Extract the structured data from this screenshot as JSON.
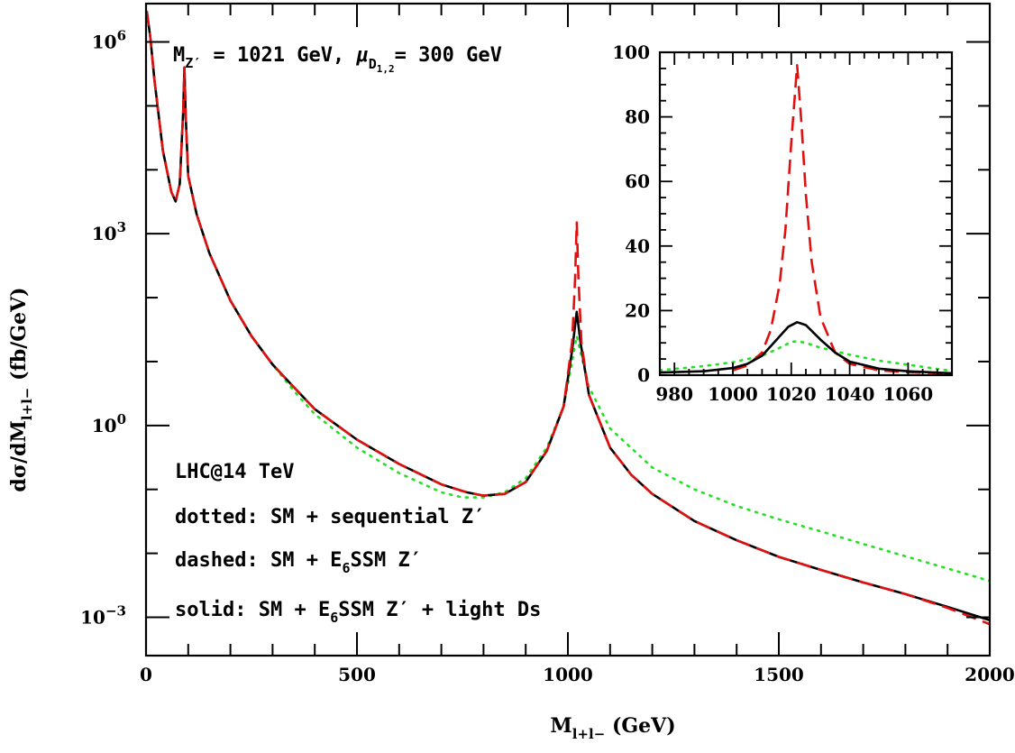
{
  "chart_data": [
    {
      "id": "main",
      "type": "line",
      "title": "",
      "xlabel": "M",
      "xlabel_sub": "l+l−",
      "xlabel_unit": "(GeV)",
      "ylabel_parts": [
        "dσ/dM",
        "l+l−",
        "(fb/GeV)"
      ],
      "xlim": [
        0,
        2000
      ],
      "ylim_log10": [
        -3.6,
        6.6
      ],
      "yscale": "log",
      "x_ticks": [
        0,
        500,
        1000,
        1500,
        2000
      ],
      "y_tick_labels": [
        {
          "base": "10",
          "exp": "6",
          "value": 1000000
        },
        {
          "base": "10",
          "exp": "3",
          "value": 1000
        },
        {
          "base": "10",
          "exp": "0",
          "value": 1
        },
        {
          "base": "10",
          "exp": "−3",
          "value": 0.001
        }
      ],
      "series": [
        {
          "name": "solid: SM + E6SSM Z′ + light Ds",
          "style": "solid",
          "color": "#000000",
          "points": [
            [
              2,
              3000000
            ],
            [
              10,
              1200000
            ],
            [
              20,
              250000
            ],
            [
              40,
              20000
            ],
            [
              60,
              4500
            ],
            [
              70,
              3200
            ],
            [
              80,
              6000
            ],
            [
              88,
              80000
            ],
            [
              91,
              400000
            ],
            [
              94,
              70000
            ],
            [
              100,
              8000
            ],
            [
              120,
              2000
            ],
            [
              150,
              500
            ],
            [
              200,
              90
            ],
            [
              250,
              25
            ],
            [
              300,
              9
            ],
            [
              350,
              4
            ],
            [
              400,
              1.8
            ],
            [
              500,
              0.6
            ],
            [
              600,
              0.25
            ],
            [
              700,
              0.12
            ],
            [
              760,
              0.09
            ],
            [
              800,
              0.08
            ],
            [
              850,
              0.085
            ],
            [
              900,
              0.13
            ],
            [
              950,
              0.4
            ],
            [
              990,
              2
            ],
            [
              1010,
              15
            ],
            [
              1021,
              60
            ],
            [
              1030,
              20
            ],
            [
              1050,
              3
            ],
            [
              1100,
              0.45
            ],
            [
              1150,
              0.17
            ],
            [
              1200,
              0.085
            ],
            [
              1300,
              0.032
            ],
            [
              1400,
              0.016
            ],
            [
              1500,
              0.0088
            ],
            [
              1600,
              0.0055
            ],
            [
              1700,
              0.0035
            ],
            [
              1800,
              0.0023
            ],
            [
              1900,
              0.00145
            ],
            [
              2000,
              0.0009
            ]
          ]
        },
        {
          "name": "dashed: SM + E6SSM Z′",
          "style": "dashed",
          "color": "#e01010",
          "points": [
            [
              2,
              3000000
            ],
            [
              10,
              1200000
            ],
            [
              20,
              250000
            ],
            [
              40,
              20000
            ],
            [
              60,
              4500
            ],
            [
              70,
              3200
            ],
            [
              80,
              6000
            ],
            [
              88,
              80000
            ],
            [
              91,
              400000
            ],
            [
              94,
              70000
            ],
            [
              100,
              8000
            ],
            [
              120,
              2000
            ],
            [
              150,
              500
            ],
            [
              200,
              90
            ],
            [
              250,
              25
            ],
            [
              300,
              9
            ],
            [
              350,
              4
            ],
            [
              400,
              1.8
            ],
            [
              500,
              0.6
            ],
            [
              600,
              0.25
            ],
            [
              700,
              0.12
            ],
            [
              760,
              0.09
            ],
            [
              800,
              0.08
            ],
            [
              850,
              0.085
            ],
            [
              900,
              0.13
            ],
            [
              950,
              0.4
            ],
            [
              990,
              2
            ],
            [
              1010,
              20
            ],
            [
              1017,
              200
            ],
            [
              1021,
              1500
            ],
            [
              1025,
              200
            ],
            [
              1032,
              20
            ],
            [
              1050,
              3
            ],
            [
              1100,
              0.45
            ],
            [
              1150,
              0.17
            ],
            [
              1200,
              0.085
            ],
            [
              1300,
              0.032
            ],
            [
              1400,
              0.016
            ],
            [
              1500,
              0.0088
            ],
            [
              1600,
              0.0055
            ],
            [
              1700,
              0.0035
            ],
            [
              1800,
              0.0023
            ],
            [
              1900,
              0.0014
            ],
            [
              2000,
              0.00078
            ]
          ]
        },
        {
          "name": "dotted: SM + sequential Z′",
          "style": "dotted",
          "color": "#22e022",
          "points": [
            [
              2,
              3000000
            ],
            [
              10,
              1200000
            ],
            [
              20,
              250000
            ],
            [
              40,
              20000
            ],
            [
              60,
              4500
            ],
            [
              70,
              3200
            ],
            [
              80,
              6000
            ],
            [
              88,
              80000
            ],
            [
              91,
              400000
            ],
            [
              94,
              70000
            ],
            [
              100,
              8000
            ],
            [
              120,
              2000
            ],
            [
              150,
              500
            ],
            [
              200,
              90
            ],
            [
              250,
              25
            ],
            [
              300,
              9
            ],
            [
              350,
              3.5
            ],
            [
              400,
              1.5
            ],
            [
              500,
              0.45
            ],
            [
              600,
              0.18
            ],
            [
              700,
              0.09
            ],
            [
              750,
              0.075
            ],
            [
              800,
              0.075
            ],
            [
              850,
              0.09
            ],
            [
              900,
              0.15
            ],
            [
              950,
              0.45
            ],
            [
              990,
              2
            ],
            [
              1010,
              10
            ],
            [
              1021,
              25
            ],
            [
              1030,
              14
            ],
            [
              1050,
              4
            ],
            [
              1100,
              0.9
            ],
            [
              1200,
              0.22
            ],
            [
              1300,
              0.1
            ],
            [
              1400,
              0.055
            ],
            [
              1500,
              0.034
            ],
            [
              1600,
              0.022
            ],
            [
              1700,
              0.014
            ],
            [
              1800,
              0.009
            ],
            [
              1900,
              0.0058
            ],
            [
              2000,
              0.0037
            ]
          ]
        }
      ],
      "annotations": {
        "top": {
          "m": "M",
          "m_sub": "Z′",
          "eq1": " = 1021 GeV, ",
          "mu": "μ",
          "mu_sub": "D",
          "mu_subsub": "1,2",
          "eq2": "= 300 GeV"
        },
        "lines": [
          {
            "text": "LHC@14 TeV"
          },
          {
            "text": "dotted: SM + sequential Z′"
          },
          {
            "pre": "dashed: SM + E",
            "sub": "6",
            "post": "SSM Z′"
          },
          {
            "pre": "solid: SM + E",
            "sub": "6",
            "post": "SSM Z′ + light Ds"
          }
        ]
      }
    },
    {
      "id": "inset",
      "type": "line",
      "title": "",
      "xlim": [
        975,
        1075
      ],
      "ylim": [
        0,
        100
      ],
      "x_ticks": [
        980,
        1000,
        1020,
        1040,
        1060
      ],
      "y_ticks": [
        0,
        20,
        40,
        60,
        80,
        100
      ],
      "series": [
        {
          "name": "solid",
          "style": "solid",
          "color": "#000000",
          "points": [
            [
              975,
              0.8
            ],
            [
              990,
              1.2
            ],
            [
              1000,
              2.2
            ],
            [
              1005,
              3.5
            ],
            [
              1010,
              6
            ],
            [
              1015,
              11
            ],
            [
              1019,
              15
            ],
            [
              1022,
              16.4
            ],
            [
              1025,
              15.5
            ],
            [
              1030,
              11
            ],
            [
              1035,
              7
            ],
            [
              1040,
              4.2
            ],
            [
              1050,
              2
            ],
            [
              1060,
              1.2
            ],
            [
              1075,
              0.6
            ]
          ]
        },
        {
          "name": "dashed",
          "style": "dashed",
          "color": "#e01010",
          "points": [
            [
              1000,
              1.5
            ],
            [
              1005,
              3
            ],
            [
              1010,
              7
            ],
            [
              1013,
              14
            ],
            [
              1016,
              28
            ],
            [
              1018,
              45
            ],
            [
              1020,
              72
            ],
            [
              1022,
              96
            ],
            [
              1023.5,
              78
            ],
            [
              1025,
              56
            ],
            [
              1027,
              35
            ],
            [
              1030,
              18
            ],
            [
              1035,
              7
            ],
            [
              1040,
              3.5
            ],
            [
              1050,
              1.5
            ],
            [
              1060,
              0.9
            ],
            [
              1075,
              0.5
            ]
          ]
        },
        {
          "name": "dotted",
          "style": "dotted",
          "color": "#22e022",
          "points": [
            [
              975,
              1.5
            ],
            [
              990,
              2.8
            ],
            [
              1000,
              4
            ],
            [
              1010,
              6
            ],
            [
              1015,
              8
            ],
            [
              1020,
              10.3
            ],
            [
              1022,
              10.5
            ],
            [
              1025,
              10
            ],
            [
              1030,
              8.5
            ],
            [
              1040,
              6.3
            ],
            [
              1050,
              4.5
            ],
            [
              1060,
              3.2
            ],
            [
              1075,
              1.3
            ]
          ]
        }
      ]
    }
  ]
}
